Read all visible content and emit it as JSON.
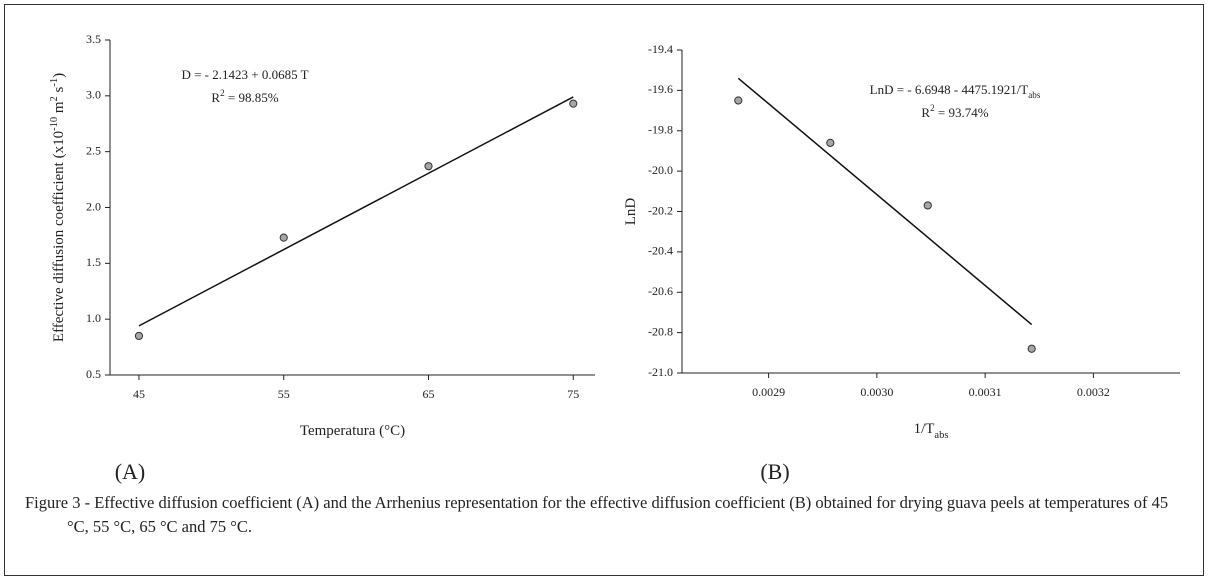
{
  "chart_data": [
    {
      "type": "scatter",
      "panel": "(A)",
      "xlabel": [
        {
          "text": "Temperatura (°C)"
        }
      ],
      "ylabel": [
        {
          "text": "Effective diffusion coefficient (x10"
        },
        {
          "text": "-10",
          "script": "sup"
        },
        {
          "text": " m"
        },
        {
          "text": "2",
          "script": "sup"
        },
        {
          "text": " s"
        },
        {
          "text": "-1",
          "script": "sup"
        },
        {
          "text": ")"
        }
      ],
      "annotations": [
        [
          {
            "text": "D = - 2.1423 + 0.0685 T"
          }
        ],
        [
          {
            "text": "R"
          },
          {
            "text": "2",
            "script": "sup"
          },
          {
            "text": " = 98.85%"
          }
        ]
      ],
      "xlim": [
        43,
        76.5
      ],
      "xticks": [
        45,
        55,
        65,
        75
      ],
      "ylim": [
        0.5,
        3.5
      ],
      "yticks": [
        0.5,
        {
          "value": 1,
          "label": "1.0"
        },
        1.5,
        {
          "value": 2,
          "label": "2.0"
        },
        2.5,
        {
          "value": 3,
          "label": "3.0"
        },
        3.5
      ],
      "series": [
        {
          "kind": "points",
          "color": "#a6a6a6",
          "x": [
            45,
            55,
            65,
            75
          ],
          "values": [
            0.85,
            1.73,
            2.37,
            2.93
          ]
        },
        {
          "kind": "line",
          "color": "#111111",
          "x": [
            45,
            75
          ],
          "values": [
            0.94,
            2.99
          ]
        }
      ]
    },
    {
      "type": "scatter",
      "panel": "(B)",
      "xlabel": [
        {
          "text": "1/T"
        },
        {
          "text": "abs",
          "script": "sub"
        }
      ],
      "ylabel": [
        {
          "text": "LnD"
        }
      ],
      "annotations": [
        [
          {
            "text": "LnD = - 6.6948 - 4475.1921/T"
          },
          {
            "text": "abs",
            "script": "sub"
          }
        ],
        [
          {
            "text": "R"
          },
          {
            "text": "2",
            "script": "sup"
          },
          {
            "text": " = 93.74%"
          }
        ]
      ],
      "xlim": [
        0.00282,
        0.00328
      ],
      "xticks": [
        0.0029,
        {
          "value": 0.003,
          "label": "0.0030"
        },
        0.0031,
        0.0032
      ],
      "ylim": [
        -21,
        -19.4
      ],
      "yticks": [
        {
          "value": -21,
          "label": "-21.0"
        },
        -20.8,
        -20.6,
        -20.4,
        -20.2,
        {
          "value": -20,
          "label": "-20.0"
        },
        -19.8,
        -19.6,
        -19.4
      ],
      "series": [
        {
          "kind": "points",
          "color": "#a6a6a6",
          "x": [
            0.002872,
            0.002957,
            0.003047,
            0.003143
          ],
          "values": [
            -19.65,
            -19.86,
            -20.17,
            -20.88
          ]
        },
        {
          "kind": "line",
          "color": "#111111",
          "x": [
            0.002872,
            0.003143
          ],
          "values": [
            -19.54,
            -20.76
          ]
        }
      ]
    }
  ],
  "caption": "Figure 3 - Effective diffusion coefficient (A) and the Arrhenius representation for the effective diffusion coefficient (B) obtained for drying guava peels at temperatures of 45 °C, 55 °C, 65 °C and 75 °C."
}
